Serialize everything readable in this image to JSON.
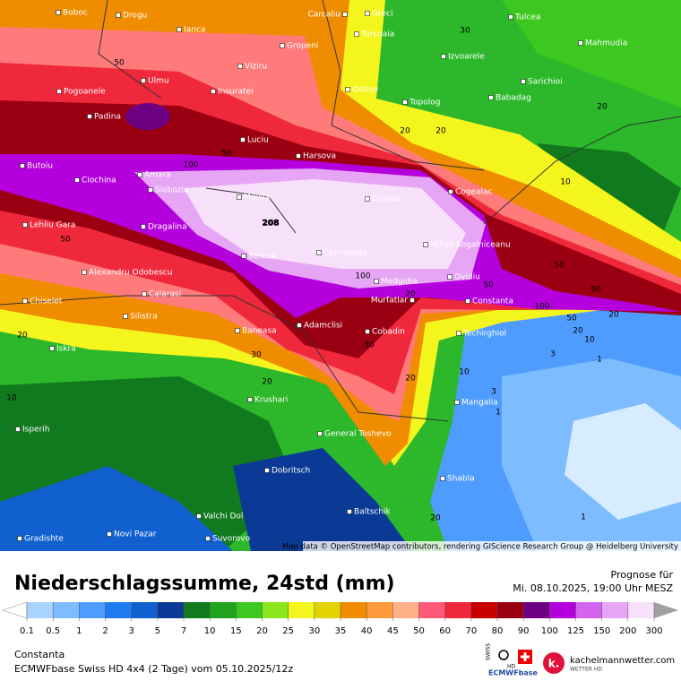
{
  "map": {
    "cities": [
      "Boboc",
      "Drogu",
      "Ianca",
      "Carcaliu",
      "Greci",
      "Tulcea",
      "Turcoaia",
      "Gropeni",
      "Mahmudia",
      "Izvoarele",
      "Viziru",
      "Sarichioi",
      "Ulmu",
      "Pogoanele",
      "Insuratei",
      "Ostrov",
      "Babadag",
      "Topolog",
      "Padina",
      "Luciu",
      "Harsova",
      "Butoiu",
      "Amara",
      "Ciochina",
      "Slobozia",
      "Cogealac",
      "Movila",
      "Crucea",
      "Lehliu Gara",
      "Dragalina",
      "Mihail Kogalniceanu",
      "Cernavoda",
      "Borcea",
      "Alexandru Odobescu",
      "Ovidiu",
      "Medgidia",
      "Calarasi",
      "Murfatlar",
      "Constanta",
      "Chiselet",
      "Silistra",
      "Adamclisi",
      "Baneasa",
      "Cobadin",
      "Techirghiol",
      "Iskra",
      "Krushari",
      "Mangalia",
      "Isperih",
      "General Toshevo",
      "Dobritsch",
      "Shabla",
      "Baltschik",
      "Valchi Dol",
      "Novi Pazar",
      "Gradishte",
      "Suvorovo"
    ],
    "contour_labels": [
      50,
      30,
      20,
      20,
      20,
      100,
      50,
      208,
      50,
      10,
      50,
      100,
      20,
      50,
      100,
      50,
      20,
      50,
      20,
      10,
      1,
      3,
      30,
      30,
      20,
      20,
      20,
      10,
      3,
      1,
      10,
      1,
      20
    ],
    "attribution": "Map data © OpenStreetMap contributors, rendering GIScience Research Group @ Heidelberg University"
  },
  "header": {
    "title": "Niederschlagssumme, 24std (mm)",
    "forecast_label": "Prognose für",
    "forecast_time": "Mi. 08.10.2025, 19:00 Uhr MESZ"
  },
  "legend": {
    "ticks": [
      0.1,
      0.5,
      1,
      2,
      3,
      5,
      7,
      10,
      15,
      20,
      25,
      30,
      35,
      40,
      45,
      50,
      60,
      70,
      80,
      90,
      100,
      125,
      150,
      200,
      300
    ],
    "under_color": "#ffffff",
    "colors": [
      "#a8d4ff",
      "#7cbcff",
      "#4f9cff",
      "#1f7cf0",
      "#1060d0",
      "#0a3a96",
      "#127a1e",
      "#1fa31f",
      "#3cc81e",
      "#8ce61e",
      "#f5f51e",
      "#e1d200",
      "#f08c00",
      "#ff9a3c",
      "#ffb088",
      "#ff5a7a",
      "#f0283c",
      "#c80000",
      "#9a0012",
      "#6e0082",
      "#b400dc",
      "#d264f0",
      "#e6a5f5",
      "#f7e0fa",
      "#d4d4d4"
    ],
    "over_color": "#a0a0a0"
  },
  "footer": {
    "location": "Constanta",
    "model": "ECMWFbase Swiss HD 4x4 (2 Tage) vom 05.10.2025/12z",
    "logo_swiss": "SWISS",
    "logo_hd": "HD",
    "logo_ecmwf": "ECMWFbase",
    "logo_site": "kachelmannwetter.com",
    "logo_sub": "WETTER HD"
  }
}
